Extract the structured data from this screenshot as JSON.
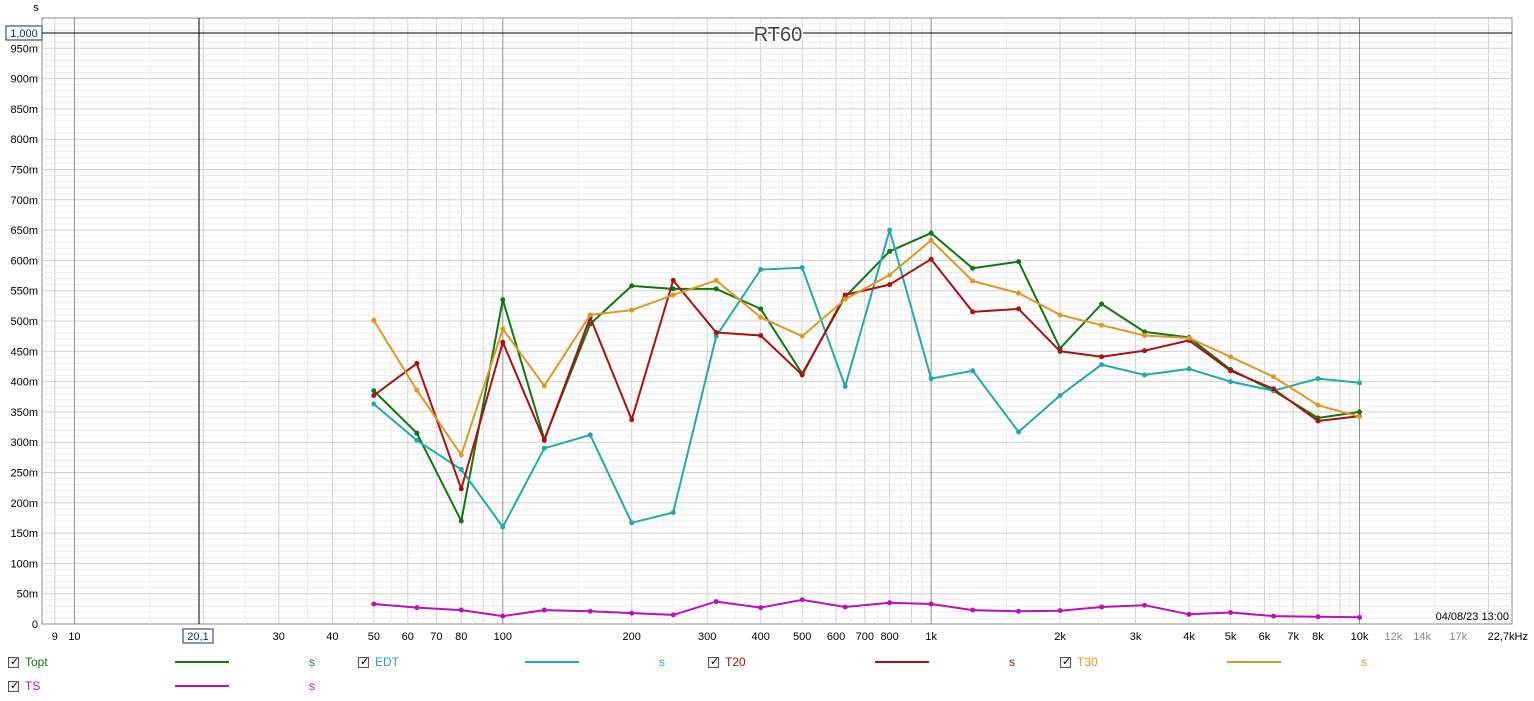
{
  "chart_data": {
    "type": "line",
    "title": "RT60",
    "ylabel": "s",
    "xlabel": "",
    "x_scale": "log",
    "xlim": [
      8.4,
      22700
    ],
    "ylim": [
      0,
      1.0
    ],
    "cursor_x": 20.1,
    "cursor_x_label": "20,1",
    "cursor_y_label": "1,000",
    "timestamp": "04/08/23 13:00",
    "grid": true,
    "legend_position": "bottom",
    "x_ticks": [
      {
        "v": 9,
        "t": "9"
      },
      {
        "v": 10,
        "t": "10"
      },
      {
        "v": 30,
        "t": "30"
      },
      {
        "v": 40,
        "t": "40"
      },
      {
        "v": 50,
        "t": "50"
      },
      {
        "v": 60,
        "t": "60"
      },
      {
        "v": 70,
        "t": "70"
      },
      {
        "v": 80,
        "t": "80"
      },
      {
        "v": 100,
        "t": "100"
      },
      {
        "v": 200,
        "t": "200"
      },
      {
        "v": 300,
        "t": "300"
      },
      {
        "v": 400,
        "t": "400"
      },
      {
        "v": 500,
        "t": "500"
      },
      {
        "v": 600,
        "t": "600"
      },
      {
        "v": 700,
        "t": "700"
      },
      {
        "v": 800,
        "t": "800"
      },
      {
        "v": 1000,
        "t": "1k"
      },
      {
        "v": 2000,
        "t": "2k"
      },
      {
        "v": 3000,
        "t": "3k"
      },
      {
        "v": 4000,
        "t": "4k"
      },
      {
        "v": 5000,
        "t": "5k"
      },
      {
        "v": 6000,
        "t": "6k"
      },
      {
        "v": 7000,
        "t": "7k"
      },
      {
        "v": 8000,
        "t": "8k"
      },
      {
        "v": 10000,
        "t": "10k"
      },
      {
        "v": 12000,
        "t": "12k",
        "grey": true
      },
      {
        "v": 14000,
        "t": "14k",
        "grey": true
      },
      {
        "v": 17000,
        "t": "17k",
        "grey": true
      },
      {
        "v": 22700,
        "t": "22,7kHz"
      }
    ],
    "y_ticks": [
      {
        "v": 0,
        "t": "0"
      },
      {
        "v": 0.05,
        "t": "50m"
      },
      {
        "v": 0.1,
        "t": "100m"
      },
      {
        "v": 0.15,
        "t": "150m"
      },
      {
        "v": 0.2,
        "t": "200m"
      },
      {
        "v": 0.25,
        "t": "250m"
      },
      {
        "v": 0.3,
        "t": "300m"
      },
      {
        "v": 0.35,
        "t": "350m"
      },
      {
        "v": 0.4,
        "t": "400m"
      },
      {
        "v": 0.45,
        "t": "450m"
      },
      {
        "v": 0.5,
        "t": "500m"
      },
      {
        "v": 0.55,
        "t": "550m"
      },
      {
        "v": 0.6,
        "t": "600m"
      },
      {
        "v": 0.65,
        "t": "650m"
      },
      {
        "v": 0.7,
        "t": "700m"
      },
      {
        "v": 0.75,
        "t": "750m"
      },
      {
        "v": 0.8,
        "t": "800m"
      },
      {
        "v": 0.85,
        "t": "850m"
      },
      {
        "v": 0.9,
        "t": "900m"
      },
      {
        "v": 0.95,
        "t": "950m"
      }
    ],
    "x": [
      50,
      63,
      80,
      100,
      125,
      160,
      200,
      250,
      315,
      400,
      500,
      630,
      800,
      1000,
      1250,
      1600,
      2000,
      2500,
      3150,
      4000,
      5000,
      6300,
      8000,
      10000
    ],
    "series": [
      {
        "name": "Topt",
        "color": "#117711",
        "values": [
          0.385,
          0.315,
          0.17,
          0.535,
          0.305,
          0.495,
          0.558,
          0.553,
          0.553,
          0.52,
          0.413,
          0.54,
          0.615,
          0.645,
          0.587,
          0.598,
          0.455,
          0.528,
          0.482,
          0.473,
          0.42,
          0.385,
          0.34,
          0.35
        ]
      },
      {
        "name": "EDT",
        "color": "#22aaaa",
        "values": [
          0.363,
          0.303,
          0.255,
          0.16,
          0.29,
          0.312,
          0.167,
          0.184,
          0.475,
          0.585,
          0.588,
          0.392,
          0.65,
          0.405,
          0.418,
          0.317,
          0.377,
          0.428,
          0.411,
          0.421,
          0.4,
          0.385,
          0.405,
          0.398
        ]
      },
      {
        "name": "T20",
        "color": "#aa1111",
        "values": [
          0.377,
          0.43,
          0.223,
          0.465,
          0.303,
          0.506,
          0.337,
          0.567,
          0.481,
          0.476,
          0.411,
          0.543,
          0.56,
          0.602,
          0.515,
          0.52,
          0.45,
          0.441,
          0.451,
          0.468,
          0.418,
          0.388,
          0.335,
          0.343
        ]
      },
      {
        "name": "T30",
        "color": "#dd9922",
        "values": [
          0.501,
          0.386,
          0.279,
          0.487,
          0.393,
          0.51,
          0.518,
          0.543,
          0.567,
          0.506,
          0.475,
          0.536,
          0.576,
          0.633,
          0.566,
          0.546,
          0.51,
          0.493,
          0.476,
          0.472,
          0.441,
          0.408,
          0.361,
          0.342
        ]
      },
      {
        "name": "TS",
        "color": "#bb11bb",
        "values": [
          0.033,
          0.027,
          0.023,
          0.013,
          0.023,
          0.021,
          0.018,
          0.015,
          0.037,
          0.027,
          0.04,
          0.028,
          0.035,
          0.033,
          0.023,
          0.021,
          0.022,
          0.028,
          0.031,
          0.016,
          0.019,
          0.013,
          0.012,
          0.011
        ]
      }
    ]
  },
  "legend": [
    {
      "label": "Topt",
      "unit": "s",
      "color": "#117711",
      "checked": true
    },
    {
      "label": "EDT",
      "unit": "s",
      "color": "#22aaaa",
      "checked": true
    },
    {
      "label": "T20",
      "unit": "s",
      "color": "#aa1111",
      "checked": true
    },
    {
      "label": "T30",
      "unit": "s",
      "color": "#dd9922",
      "checked": true
    },
    {
      "label": "TS",
      "unit": "s",
      "color": "#bb11bb",
      "checked": true
    }
  ],
  "icons": {
    "checkbox": "checkbox-checked-icon"
  }
}
